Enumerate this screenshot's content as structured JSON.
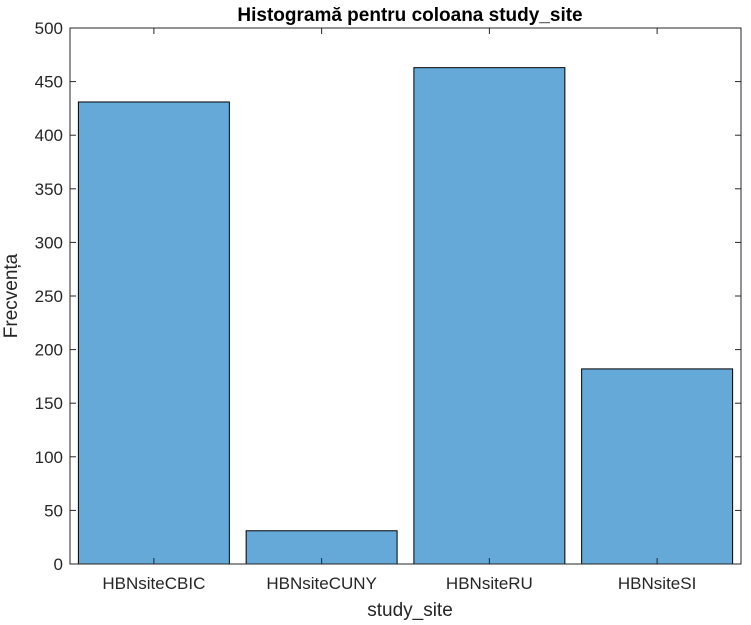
{
  "chart_data": {
    "type": "bar",
    "title": "Histogramă pentru coloana study_site",
    "xlabel": "study_site",
    "ylabel": "Frecvența",
    "categories": [
      "HBNsiteCBIC",
      "HBNsiteCUNY",
      "HBNsiteRU",
      "HBNsiteSI"
    ],
    "values": [
      431,
      31,
      463,
      182
    ],
    "ylim": [
      0,
      500
    ],
    "yticks": [
      0,
      50,
      100,
      150,
      200,
      250,
      300,
      350,
      400,
      450,
      500
    ],
    "bar_color": "#65a9d8",
    "grid": false,
    "box": true
  }
}
